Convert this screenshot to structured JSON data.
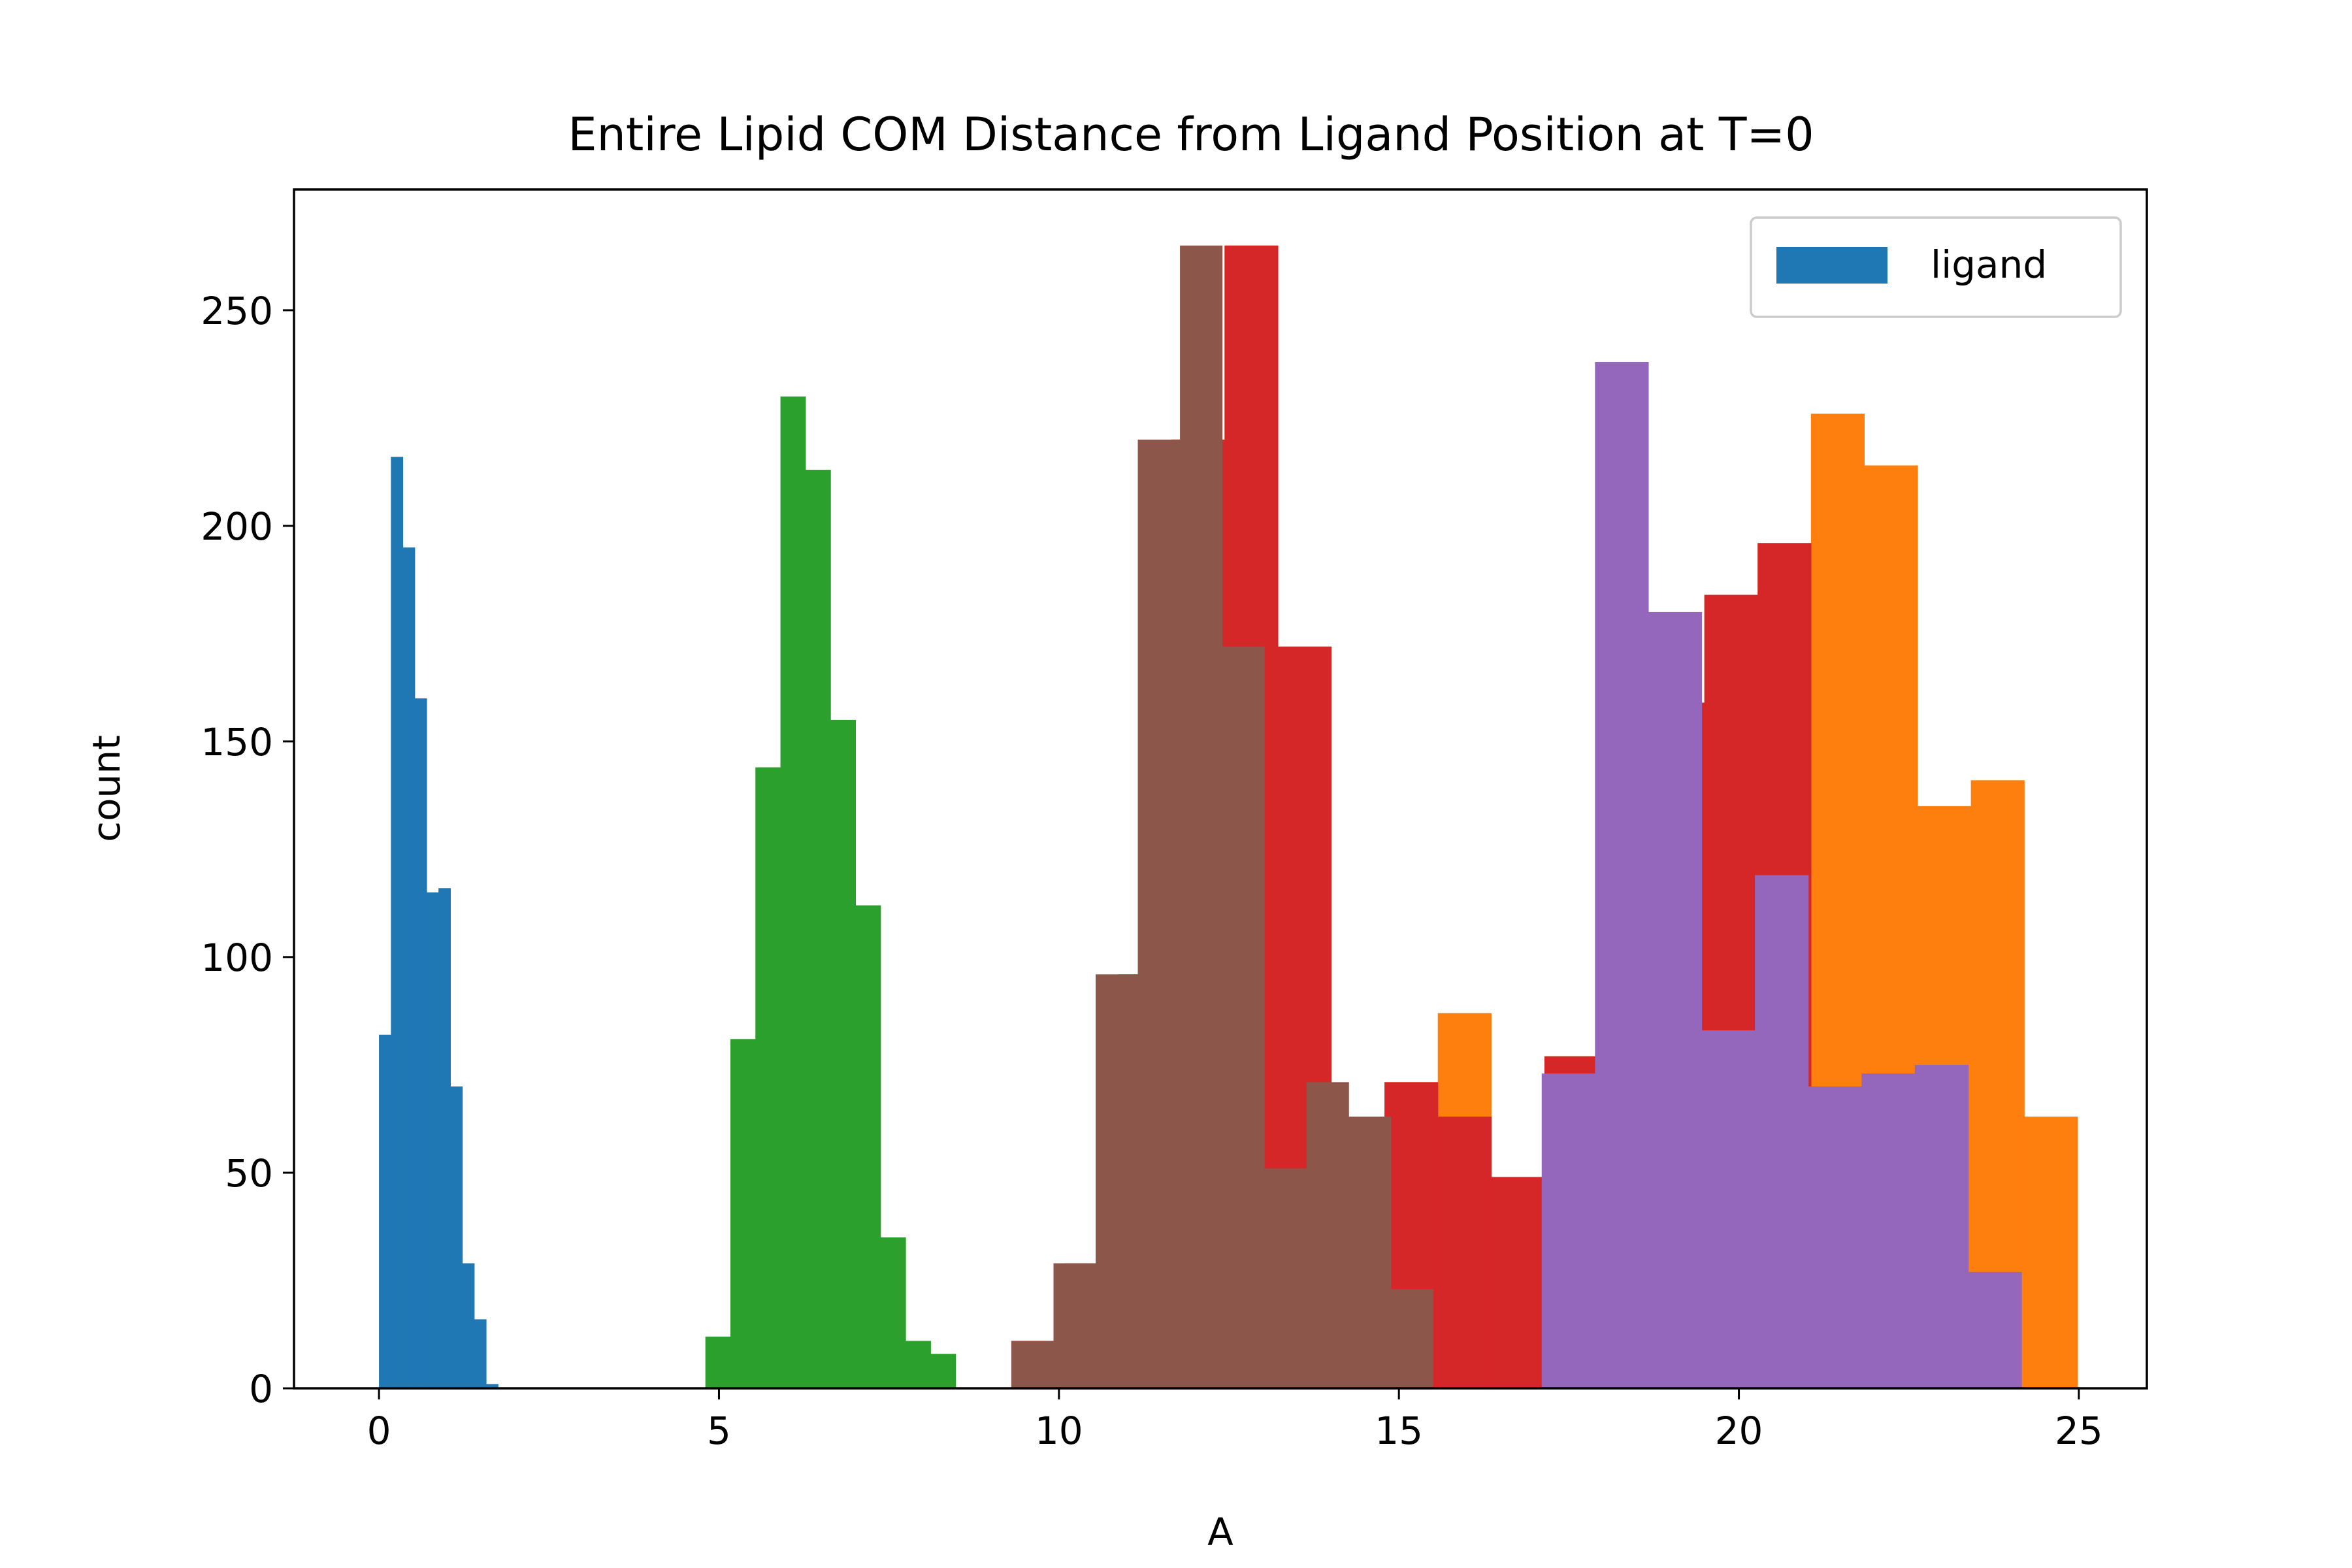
{
  "chart_data": {
    "type": "bar",
    "title": "Entire Lipid COM Distance from Ligand Position at T=0",
    "xlabel": "A",
    "ylabel": "count",
    "xlim": [
      -1.25,
      26
    ],
    "ylim": [
      0,
      278
    ],
    "xticks": [
      0,
      5,
      10,
      15,
      20,
      25
    ],
    "yticks": [
      0,
      50,
      100,
      150,
      200,
      250
    ],
    "grid": false,
    "legend": {
      "position": "top-right",
      "entries": [
        "ligand"
      ]
    },
    "series": [
      {
        "name": "ligand",
        "color": "#1f77b4",
        "bin_start": 0.0,
        "bin_width": 0.175,
        "counts": [
          82,
          216,
          195,
          160,
          115,
          116,
          70,
          29,
          16,
          1
        ]
      },
      {
        "color": "#2ca02c",
        "bin_start": 4.8,
        "bin_width": 0.368,
        "counts": [
          12,
          81,
          144,
          230,
          213,
          155,
          112,
          35,
          11,
          8
        ]
      },
      {
        "color": "#ff7f0e",
        "bin_start": 9.3,
        "bin_width": 0.784,
        "counts": [
          11,
          29,
          96,
          220,
          265,
          172,
          51,
          71,
          87,
          49,
          77,
          122,
          159,
          184,
          196,
          226,
          214,
          135,
          141,
          63
        ]
      },
      {
        "color": "#d62728",
        "bin_start": 9.3,
        "bin_width": 0.784,
        "counts": [
          11,
          29,
          96,
          220,
          265,
          172,
          51,
          71,
          63,
          49,
          77,
          122,
          159,
          184,
          196
        ]
      },
      {
        "color": "#9467bd",
        "bin_start": 17.1,
        "bin_width": 0.784,
        "counts": [
          73,
          238,
          180,
          83,
          119,
          70,
          73,
          75,
          27
        ]
      },
      {
        "color": "#8c564b",
        "bin_start": 9.3,
        "bin_width": 0.62,
        "counts": [
          11,
          29,
          96,
          220,
          265,
          172,
          51,
          71,
          63,
          23
        ]
      }
    ]
  }
}
